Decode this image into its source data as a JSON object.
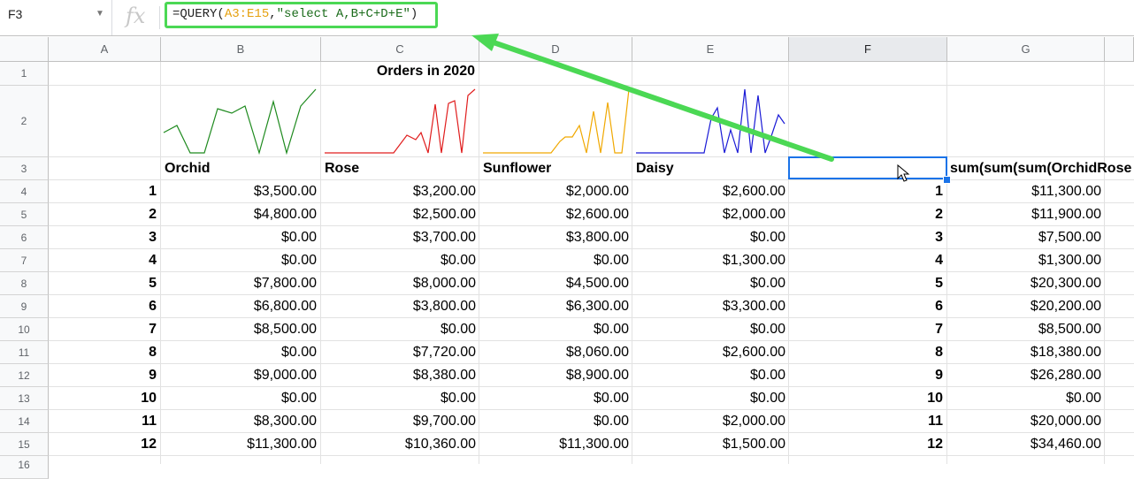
{
  "formula_bar": {
    "name_box": "F3",
    "fx_label": "fx",
    "formula_prefix": "=QUERY(",
    "formula_range": "A3:E15",
    "formula_comma": ",",
    "formula_string": "\"select A,B+C+D+E\"",
    "formula_suffix": ")"
  },
  "columns": [
    "A",
    "B",
    "C",
    "D",
    "E",
    "F",
    "G"
  ],
  "rows": [
    "1",
    "2",
    "3",
    "4",
    "5",
    "6",
    "7",
    "8",
    "9",
    "10",
    "11",
    "12",
    "13",
    "14",
    "15",
    "16"
  ],
  "sheet": {
    "title": "Orders in 2020",
    "headers": {
      "B": "Orchid",
      "C": "Rose",
      "D": "Sunflower",
      "E": "Daisy",
      "G": "sum(sum(sum(OrchidRose"
    },
    "sparkline_colors": {
      "orchid": "#1e8a1e",
      "rose": "#e01d1d",
      "sunflower": "#f0a800",
      "daisy": "#1a1ad6"
    },
    "data": [
      {
        "a": "1",
        "b": "$3,500.00",
        "c": "$3,200.00",
        "d": "$2,000.00",
        "e": "$2,600.00",
        "f": "1",
        "g": "$11,300.00"
      },
      {
        "a": "2",
        "b": "$4,800.00",
        "c": "$2,500.00",
        "d": "$2,600.00",
        "e": "$2,000.00",
        "f": "2",
        "g": "$11,900.00"
      },
      {
        "a": "3",
        "b": "$0.00",
        "c": "$3,700.00",
        "d": "$3,800.00",
        "e": "$0.00",
        "f": "3",
        "g": "$7,500.00"
      },
      {
        "a": "4",
        "b": "$0.00",
        "c": "$0.00",
        "d": "$0.00",
        "e": "$1,300.00",
        "f": "4",
        "g": "$1,300.00"
      },
      {
        "a": "5",
        "b": "$7,800.00",
        "c": "$8,000.00",
        "d": "$4,500.00",
        "e": "$0.00",
        "f": "5",
        "g": "$20,300.00"
      },
      {
        "a": "6",
        "b": "$6,800.00",
        "c": "$3,800.00",
        "d": "$6,300.00",
        "e": "$3,300.00",
        "f": "6",
        "g": "$20,200.00"
      },
      {
        "a": "7",
        "b": "$8,500.00",
        "c": "$0.00",
        "d": "$0.00",
        "e": "$0.00",
        "f": "7",
        "g": "$8,500.00"
      },
      {
        "a": "8",
        "b": "$0.00",
        "c": "$7,720.00",
        "d": "$8,060.00",
        "e": "$2,600.00",
        "f": "8",
        "g": "$18,380.00"
      },
      {
        "a": "9",
        "b": "$9,000.00",
        "c": "$8,380.00",
        "d": "$8,900.00",
        "e": "$0.00",
        "f": "9",
        "g": "$26,280.00"
      },
      {
        "a": "10",
        "b": "$0.00",
        "c": "$0.00",
        "d": "$0.00",
        "e": "$0.00",
        "f": "10",
        "g": "$0.00"
      },
      {
        "a": "11",
        "b": "$8,300.00",
        "c": "$9,700.00",
        "d": "$0.00",
        "e": "$2,000.00",
        "f": "11",
        "g": "$20,000.00"
      },
      {
        "a": "12",
        "b": "$11,300.00",
        "c": "$10,360.00",
        "d": "$11,300.00",
        "e": "$1,500.00",
        "f": "12",
        "g": "$34,460.00"
      }
    ]
  },
  "annotation": {
    "arrow_color": "#4bd854",
    "selection_color": "#1a73e8"
  }
}
